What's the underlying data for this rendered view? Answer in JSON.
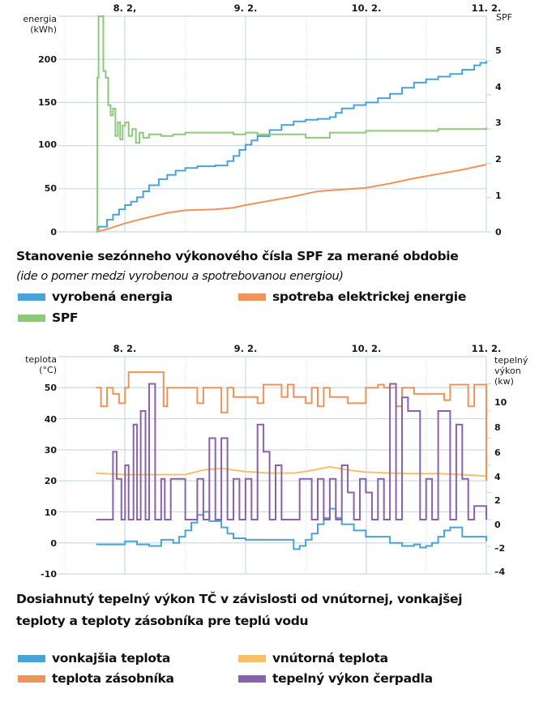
{
  "chart_data": [
    {
      "type": "line",
      "title": "Stanovenie sezónneho výkonového čísla SPF za merané obdobie",
      "subtitle": "(ide o pomer medzi vyrobenou a spotrebovanou energiou)",
      "xlabel": "",
      "ylabel": [
        "energia",
        "(kWh)"
      ],
      "y2label": "SPF",
      "x_tick_labels": [
        "8. 2,",
        "9. 2.",
        "10. 2.",
        "11. 2."
      ],
      "x_ticks": [
        8,
        9,
        10,
        11
      ],
      "xlim": [
        7.5,
        11
      ],
      "ylim": [
        0,
        250
      ],
      "y_ticks": [
        0,
        50,
        100,
        150,
        200
      ],
      "y2lim": [
        0,
        6.3
      ],
      "y2_ticks": [
        0,
        1,
        2,
        3,
        4,
        5
      ],
      "grid": true,
      "legend_position": "bottom",
      "series": [
        {
          "name": "vyrobená energia",
          "axis": "left",
          "color": "#4aa3d8",
          "step": true,
          "x": [
            7.76,
            7.78,
            7.85,
            7.9,
            7.95,
            8.0,
            8.05,
            8.1,
            8.15,
            8.2,
            8.28,
            8.35,
            8.42,
            8.5,
            8.6,
            8.75,
            8.85,
            8.9,
            8.95,
            9.0,
            9.05,
            9.1,
            9.2,
            9.3,
            9.4,
            9.5,
            9.55,
            9.6,
            9.7,
            9.75,
            9.8,
            9.9,
            10.0,
            10.1,
            10.2,
            10.3,
            10.4,
            10.5,
            10.6,
            10.7,
            10.8,
            10.9,
            10.95,
            11.0
          ],
          "values": [
            3,
            6,
            14,
            20,
            26,
            31,
            35,
            40,
            47,
            54,
            61,
            66,
            71,
            74,
            76,
            77,
            82,
            88,
            95,
            101,
            106,
            111,
            118,
            124,
            128,
            130,
            130,
            131,
            133,
            138,
            143,
            147,
            150,
            155,
            160,
            167,
            173,
            177,
            180,
            183,
            188,
            193,
            196,
            198
          ]
        },
        {
          "name": "spotreba elektrickej energie",
          "axis": "left",
          "color": "#f0935a",
          "step": false,
          "x": [
            7.76,
            7.85,
            8.0,
            8.2,
            8.35,
            8.5,
            8.75,
            8.9,
            9.0,
            9.2,
            9.4,
            9.6,
            9.8,
            10.0,
            10.2,
            10.4,
            10.6,
            10.8,
            11.0
          ],
          "values": [
            0,
            3,
            10,
            17,
            22,
            25,
            26,
            28,
            31,
            36,
            41,
            47,
            49,
            51,
            56,
            62,
            67,
            72,
            78
          ]
        },
        {
          "name": "SPF",
          "axis": "right",
          "color": "#8dc97a",
          "step": true,
          "x": [
            7.76,
            7.77,
            7.78,
            7.8,
            7.82,
            7.84,
            7.86,
            7.88,
            7.9,
            7.92,
            7.94,
            7.96,
            7.98,
            8.0,
            8.03,
            8.06,
            8.09,
            8.12,
            8.15,
            8.2,
            8.3,
            8.4,
            8.5,
            8.7,
            8.9,
            9.0,
            9.1,
            9.3,
            9.5,
            9.7,
            9.9,
            10.0,
            10.2,
            10.4,
            10.6,
            10.8,
            11.0
          ],
          "values": [
            0,
            4.5,
            6.3,
            6.3,
            4.7,
            4.5,
            3.7,
            3.4,
            3.6,
            2.8,
            3.2,
            2.7,
            3.1,
            3.2,
            2.8,
            3.0,
            2.6,
            2.9,
            2.75,
            2.85,
            2.8,
            2.85,
            2.9,
            2.9,
            2.85,
            2.9,
            2.85,
            2.85,
            2.75,
            2.9,
            2.9,
            2.95,
            2.95,
            2.95,
            3.0,
            3.0,
            3.05
          ]
        }
      ]
    },
    {
      "type": "line",
      "title": "Dosiahnutý tepelný výkon TČ v závislosti od vnútornej, vonkajšej teploty a teploty zásobníka pre teplú vodu",
      "xlabel": "",
      "ylabel": [
        "teplota",
        "(°C)"
      ],
      "y2label": [
        "tepelný",
        "výkon",
        "(kw)"
      ],
      "x_tick_labels": [
        "8. 2.",
        "9. 2.",
        "10. 2.",
        "11. 2."
      ],
      "x_ticks": [
        8,
        9,
        10,
        11
      ],
      "xlim": [
        7.5,
        11
      ],
      "ylim": [
        -10,
        60
      ],
      "y_ticks": [
        -10,
        0,
        10,
        20,
        30,
        40,
        50
      ],
      "y2lim": [
        -4,
        12
      ],
      "y2_ticks": [
        -4,
        -2,
        0,
        2,
        4,
        6,
        8,
        10
      ],
      "grid": true,
      "legend_position": "bottom",
      "series": [
        {
          "name": "vonkajšia teplota",
          "axis": "left",
          "color": "#4aa3d8",
          "step": true,
          "x": [
            7.76,
            8.0,
            8.1,
            8.2,
            8.3,
            8.4,
            8.45,
            8.5,
            8.55,
            8.6,
            8.65,
            8.7,
            8.75,
            8.8,
            8.85,
            8.9,
            9.0,
            9.2,
            9.4,
            9.45,
            9.5,
            9.55,
            9.6,
            9.65,
            9.7,
            9.75,
            9.8,
            9.9,
            10.0,
            10.2,
            10.3,
            10.4,
            10.45,
            10.5,
            10.55,
            10.6,
            10.65,
            10.7,
            10.8,
            11.0
          ],
          "values": [
            -0.5,
            0.5,
            -0.5,
            -1,
            1,
            0,
            2,
            4,
            6.5,
            9,
            10,
            7,
            7,
            5,
            3,
            1.5,
            1,
            1,
            -2,
            -1,
            1,
            3,
            6,
            8,
            11,
            8,
            6,
            4,
            2,
            0,
            -1,
            -0.5,
            -1.5,
            -1,
            0,
            2,
            4,
            5,
            2,
            0.5
          ]
        },
        {
          "name": "vnútorná teplota",
          "axis": "left",
          "color": "#f5c06a",
          "step": false,
          "x": [
            7.76,
            8.0,
            8.5,
            8.65,
            8.8,
            9.0,
            9.2,
            9.4,
            9.5,
            9.7,
            9.85,
            10.0,
            10.2,
            10.4,
            10.6,
            10.8,
            11.0
          ],
          "values": [
            22.5,
            22.0,
            22.0,
            23.5,
            24.0,
            23.0,
            22.5,
            22.5,
            23.0,
            24.5,
            23.5,
            22.8,
            22.5,
            22.3,
            22.3,
            22.0,
            21.5
          ]
        },
        {
          "name": "teplota zásobníka",
          "axis": "left",
          "color": "#f0935a",
          "step": true,
          "x": [
            7.76,
            7.8,
            7.85,
            7.9,
            7.95,
            8.0,
            8.03,
            8.3,
            8.32,
            8.35,
            8.5,
            8.6,
            8.65,
            8.75,
            8.8,
            8.85,
            8.9,
            9.0,
            9.1,
            9.15,
            9.2,
            9.3,
            9.35,
            9.4,
            9.5,
            9.55,
            9.6,
            9.65,
            9.7,
            9.8,
            9.85,
            10.0,
            10.1,
            10.15,
            10.25,
            10.3,
            10.4,
            10.5,
            10.6,
            10.65,
            10.7,
            10.8,
            10.85,
            10.9,
            10.99,
            11.0
          ],
          "values": [
            50,
            44,
            50,
            48,
            45,
            50,
            55,
            55,
            44,
            50,
            50,
            45,
            50,
            50,
            42,
            50,
            47,
            47,
            45,
            51,
            51,
            47,
            51,
            47,
            45,
            50,
            44,
            50,
            47,
            47,
            45,
            50,
            51,
            50,
            44,
            50,
            48,
            48,
            48,
            46,
            51,
            51,
            44,
            51,
            51,
            20
          ]
        },
        {
          "name": "tepelný výkon čerpadla",
          "axis": "right",
          "color": "#8a62aa",
          "step": true,
          "x": [
            7.76,
            7.84,
            7.9,
            7.93,
            7.97,
            8.0,
            8.03,
            8.07,
            8.1,
            8.13,
            8.17,
            8.2,
            8.25,
            8.3,
            8.33,
            8.38,
            8.42,
            8.5,
            8.6,
            8.65,
            8.7,
            8.75,
            8.8,
            8.85,
            8.9,
            8.95,
            9.0,
            9.05,
            9.1,
            9.15,
            9.2,
            9.25,
            9.3,
            9.35,
            9.4,
            9.45,
            9.5,
            9.55,
            9.6,
            9.65,
            9.7,
            9.75,
            9.8,
            9.85,
            9.9,
            9.95,
            10.0,
            10.05,
            10.1,
            10.15,
            10.2,
            10.25,
            10.3,
            10.35,
            10.4,
            10.45,
            10.5,
            10.55,
            10.6,
            10.65,
            10.7,
            10.75,
            10.8,
            10.85,
            10.9,
            10.95,
            11.0
          ],
          "values": [
            0,
            0,
            5,
            3,
            0,
            4,
            0,
            7,
            0,
            8,
            0,
            10,
            0,
            3,
            0,
            3,
            3,
            0,
            3,
            0,
            6,
            0,
            6,
            0,
            3,
            0,
            3,
            0,
            7,
            5,
            0,
            4,
            0,
            0,
            0,
            3,
            3,
            0,
            3,
            0,
            3,
            0,
            4,
            2,
            0,
            3,
            2,
            0,
            3,
            0,
            10,
            0,
            9,
            8,
            8,
            0,
            3,
            0,
            8,
            8,
            0,
            7,
            3,
            0,
            1,
            1,
            0
          ]
        }
      ]
    }
  ],
  "chart1": {
    "title": "Stanovenie sezónneho výkonového čísla SPF za merané obdobie",
    "subtitle": "(ide o pomer medzi vyrobenou a spotrebovanou energiou)",
    "ylabel1": "energia",
    "ylabel2": "(kWh)",
    "y2label": "SPF",
    "days": [
      "8. 2,",
      "9. 2.",
      "10. 2.",
      "11. 2."
    ],
    "yticks": [
      "0",
      "50",
      "100",
      "150",
      "200"
    ],
    "y2ticks": [
      "0",
      "1",
      "2",
      "3",
      "4",
      "5"
    ],
    "legend": [
      {
        "label": "vyrobená energia",
        "color": "#4aa3d8"
      },
      {
        "label": "spotreba elektrickej energie",
        "color": "#f0935a"
      },
      {
        "label": "SPF",
        "color": "#8dc97a"
      }
    ]
  },
  "chart2": {
    "title_line1": "Dosiahnutý tepelný výkon TČ v závislosti od vnútornej, vonkajšej",
    "title_line2": "teploty a teploty zásobníka pre teplú vodu",
    "ylabel1": "teplota",
    "ylabel2": "(°C)",
    "y2label1": "tepelný",
    "y2label2": "výkon",
    "y2label3": "(kw)",
    "days": [
      "8. 2.",
      "9. 2.",
      "10. 2.",
      "11. 2."
    ],
    "yticks": [
      "-10",
      "0",
      "10",
      "20",
      "30",
      "40",
      "50"
    ],
    "y2ticks": [
      "–4",
      "–2",
      "0",
      "2",
      "4",
      "6",
      "8",
      "10"
    ],
    "legend": [
      {
        "label": "vonkajšia teplota",
        "color": "#4aa3d8"
      },
      {
        "label": "vnútorná teplota",
        "color": "#f5c06a"
      },
      {
        "label": "teplota zásobníka",
        "color": "#f0935a"
      },
      {
        "label": "tepelný výkon čerpadla",
        "color": "#8a62aa"
      }
    ]
  }
}
